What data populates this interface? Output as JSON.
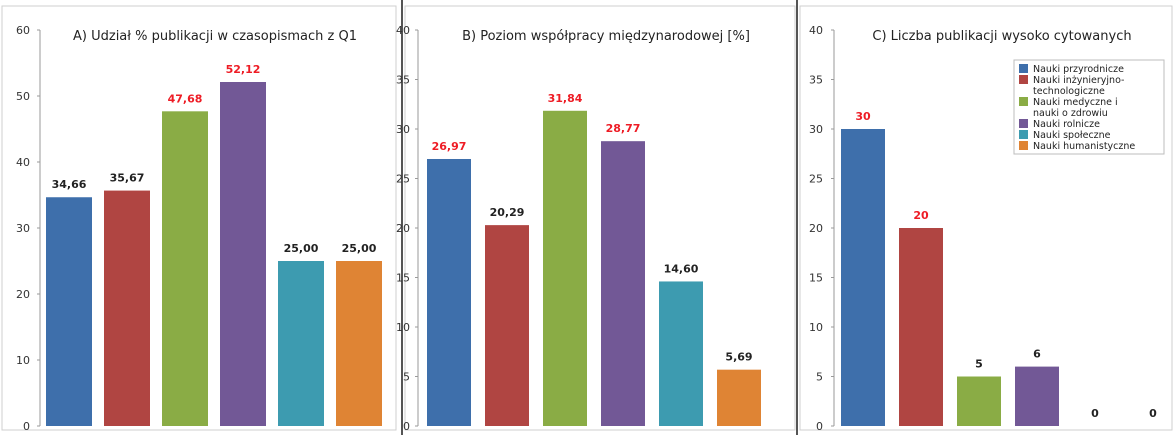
{
  "colors": {
    "series": [
      "#3e6fab",
      "#b04542",
      "#8aac45",
      "#725896",
      "#3d9bb0",
      "#df8434"
    ],
    "highlight_label": "#ee1c25",
    "normal_label": "#222222"
  },
  "legend": {
    "items": [
      {
        "lines": [
          "Nauki przyrodnicze"
        ]
      },
      {
        "lines": [
          "Nauki inżynieryjno-",
          "technologiczne"
        ]
      },
      {
        "lines": [
          "Nauki medyczne i",
          "nauki o zdrowiu"
        ]
      },
      {
        "lines": [
          "Nauki rolnicze"
        ]
      },
      {
        "lines": [
          "Nauki społeczne"
        ]
      },
      {
        "lines": [
          "Nauki humanistyczne"
        ]
      }
    ]
  },
  "chart_data": [
    {
      "type": "bar",
      "title": "A) Udział % publikacji w czasopismach z Q1",
      "categories": [
        "Nauki przyrodnicze",
        "Nauki inżynieryjno-technologiczne",
        "Nauki medyczne i nauki o zdrowiu",
        "Nauki rolnicze",
        "Nauki społeczne",
        "Nauki humanistyczne"
      ],
      "values": [
        34.66,
        35.67,
        47.68,
        52.12,
        25.0,
        25.0
      ],
      "value_labels": [
        "34,66",
        "35,67",
        "47,68",
        "52,12",
        "25,00",
        "25,00"
      ],
      "highlighted": [
        false,
        false,
        true,
        true,
        false,
        false
      ],
      "ylim": [
        0,
        60
      ],
      "yticks": [
        0,
        10,
        20,
        30,
        40,
        50,
        60
      ],
      "ytick_labels": [
        "0",
        "10",
        "20",
        "30",
        "40",
        "50",
        "60"
      ],
      "grid": false,
      "legend": false
    },
    {
      "type": "bar",
      "title": "B) Poziom współpracy międzynarodowej [%]",
      "categories": [
        "Nauki przyrodnicze",
        "Nauki inżynieryjno-technologiczne",
        "Nauki medyczne i nauki o zdrowiu",
        "Nauki rolnicze",
        "Nauki społeczne",
        "Nauki humanistyczne"
      ],
      "values": [
        26.97,
        20.29,
        31.84,
        28.77,
        14.6,
        5.69
      ],
      "value_labels": [
        "26,97",
        "20,29",
        "31,84",
        "28,77",
        "14,60",
        "5,69"
      ],
      "highlighted": [
        true,
        false,
        true,
        true,
        false,
        false
      ],
      "ylim": [
        0,
        40
      ],
      "yticks": [
        0,
        5,
        10,
        15,
        20,
        25,
        30,
        35,
        40
      ],
      "ytick_labels": [
        "0",
        "5",
        "10",
        "15",
        "20",
        "25",
        "30",
        "35",
        "40"
      ],
      "grid": false,
      "legend": false
    },
    {
      "type": "bar",
      "title": "C) Liczba publikacji wysoko cytowanych",
      "categories": [
        "Nauki przyrodnicze",
        "Nauki inżynieryjno-technologiczne",
        "Nauki medyczne i nauki o zdrowiu",
        "Nauki rolnicze",
        "Nauki społeczne",
        "Nauki humanistyczne"
      ],
      "values": [
        30,
        20,
        5,
        6,
        0,
        0
      ],
      "value_labels": [
        "30",
        "20",
        "5",
        "6",
        "0",
        "0"
      ],
      "highlighted": [
        true,
        true,
        false,
        false,
        false,
        false
      ],
      "ylim": [
        0,
        40
      ],
      "yticks": [
        0,
        5,
        10,
        15,
        20,
        25,
        30,
        35,
        40
      ],
      "ytick_labels": [
        "0",
        "5",
        "10",
        "15",
        "20",
        "25",
        "30",
        "35",
        "40"
      ],
      "grid": false,
      "legend": true,
      "legend_position": "top-right"
    }
  ]
}
